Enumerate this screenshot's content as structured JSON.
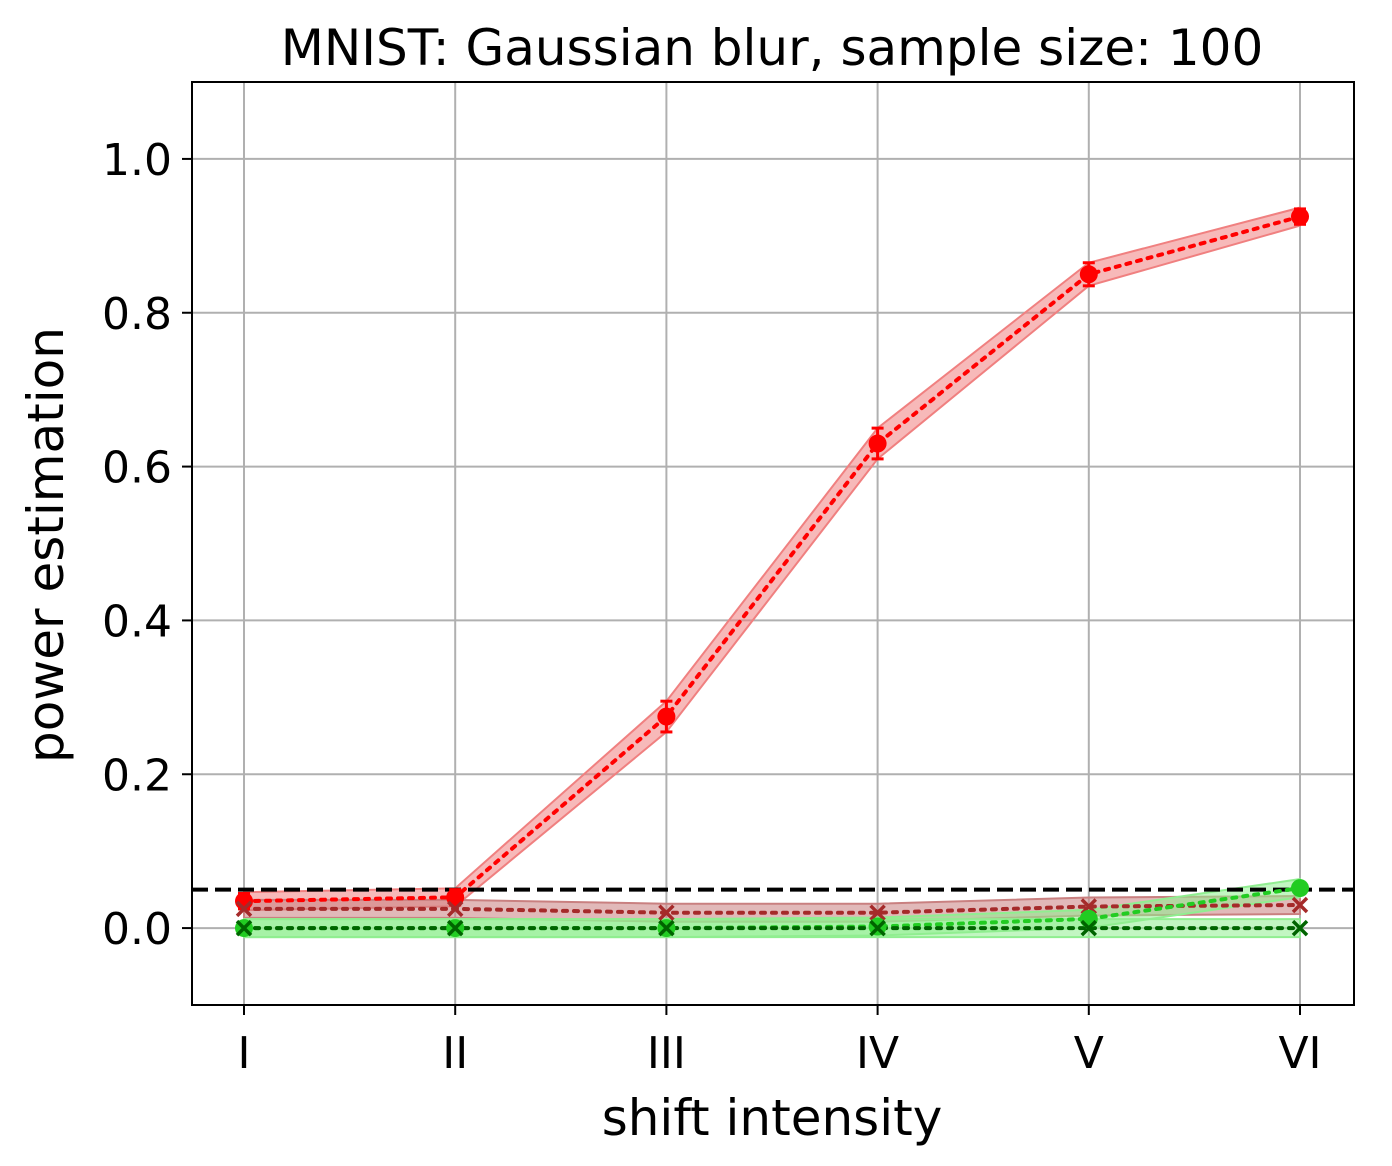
{
  "chart_data": {
    "type": "line",
    "title": "MNIST: Gaussian blur, sample size: 100",
    "xlabel": "shift intensity",
    "ylabel": "power estimation",
    "categories": [
      "I",
      "II",
      "III",
      "IV",
      "V",
      "VI"
    ],
    "ylim": [
      -0.1,
      1.1
    ],
    "yticks": [
      0.0,
      0.2,
      0.4,
      0.6,
      0.8,
      1.0
    ],
    "yticklabels": [
      "0.0",
      "0.2",
      "0.4",
      "0.6",
      "0.8",
      "1.0"
    ],
    "grid": true,
    "reference_line": {
      "y": 0.05,
      "color": "#000000",
      "style": "dashed"
    },
    "series": [
      {
        "color": "#ff0000",
        "band_color": "#f08080",
        "marker": "circle",
        "values": [
          0.035,
          0.04,
          0.275,
          0.63,
          0.85,
          0.925
        ],
        "lower": [
          0.025,
          0.03,
          0.255,
          0.61,
          0.835,
          0.915
        ],
        "upper": [
          0.045,
          0.05,
          0.295,
          0.65,
          0.865,
          0.935
        ],
        "errorbars": true
      },
      {
        "color": "#a52a2a",
        "band_color": "#c98080",
        "marker": "x",
        "values": [
          0.025,
          0.025,
          0.02,
          0.02,
          0.028,
          0.03
        ],
        "lower": [
          0.015,
          0.015,
          0.012,
          0.012,
          0.018,
          0.02
        ],
        "upper": [
          0.035,
          0.035,
          0.028,
          0.028,
          0.038,
          0.04
        ],
        "errorbars": false
      },
      {
        "color": "#22cc22",
        "band_color": "#90ee90",
        "marker": "circle",
        "values": [
          0.0,
          0.0,
          0.0,
          0.002,
          0.012,
          0.052
        ],
        "lower": [
          0.0,
          0.0,
          0.0,
          0.0,
          0.004,
          0.042
        ],
        "upper": [
          0.0,
          0.0,
          0.0,
          0.006,
          0.02,
          0.062
        ],
        "errorbars": false
      },
      {
        "color": "#006400",
        "band_color": "#90ee90",
        "marker": "x",
        "values": [
          0.0,
          0.0,
          0.0,
          0.0,
          0.0,
          0.0
        ],
        "lower": [
          0.0,
          0.0,
          0.0,
          0.0,
          0.0,
          0.0
        ],
        "upper": [
          0.0,
          0.0,
          0.0,
          0.0,
          0.0,
          0.0
        ],
        "errorbars": false
      }
    ]
  }
}
